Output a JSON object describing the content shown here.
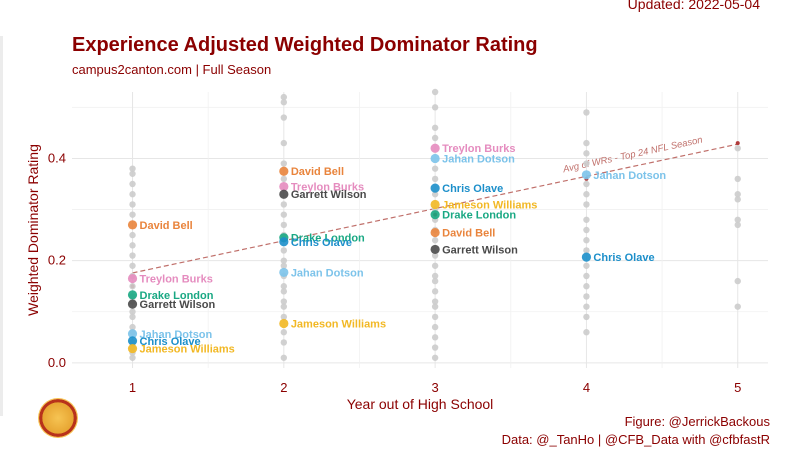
{
  "header": {
    "updated": "Updated: 2022-05-04",
    "title": "Experience Adjusted Weighted Dominator Rating",
    "subtitle": "campus2canton.com | Full Season"
  },
  "footer": {
    "figure_credit": "Figure: @JerrickBackous",
    "data_credit": "Data: @_TanHo | @CFB_Data with @cfbfastR"
  },
  "colors": {
    "accent": "#8b0000",
    "background_points": "#cccccc",
    "trend": "#c0706b",
    "players": {
      "David Bell": "#e9843c",
      "Treylon Burks": "#e58cbf",
      "Drake London": "#19a883",
      "Garrett Wilson": "#4a4a4a",
      "Jahan Dotson": "#7cc3ea",
      "Chris Olave": "#1c8fca",
      "Jameson Williams": "#f2b824"
    }
  },
  "chart_data": {
    "type": "scatter",
    "xlabel": "Year out of High School",
    "ylabel": "Weighted Dominator Rating",
    "xlim": [
      0.6,
      5.2
    ],
    "ylim": [
      -0.01,
      0.53
    ],
    "x_ticks": [
      1,
      2,
      3,
      4,
      5
    ],
    "y_ticks": [
      0.0,
      0.2,
      0.4
    ],
    "y_tick_labels": [
      "0.0",
      "0.2",
      "0.4"
    ],
    "grid": true,
    "background_points": [
      {
        "x": 1,
        "y": 0.38
      },
      {
        "x": 1,
        "y": 0.37
      },
      {
        "x": 1,
        "y": 0.35
      },
      {
        "x": 1,
        "y": 0.33
      },
      {
        "x": 1,
        "y": 0.31
      },
      {
        "x": 1,
        "y": 0.29
      },
      {
        "x": 1,
        "y": 0.25
      },
      {
        "x": 1,
        "y": 0.23
      },
      {
        "x": 1,
        "y": 0.21
      },
      {
        "x": 1,
        "y": 0.19
      },
      {
        "x": 1,
        "y": 0.17
      },
      {
        "x": 1,
        "y": 0.15
      },
      {
        "x": 1,
        "y": 0.13
      },
      {
        "x": 1,
        "y": 0.12
      },
      {
        "x": 1,
        "y": 0.1
      },
      {
        "x": 1,
        "y": 0.09
      },
      {
        "x": 1,
        "y": 0.07
      },
      {
        "x": 1,
        "y": 0.06
      },
      {
        "x": 1,
        "y": 0.04
      },
      {
        "x": 1,
        "y": 0.03
      },
      {
        "x": 1,
        "y": 0.02
      },
      {
        "x": 1,
        "y": 0.01
      },
      {
        "x": 2,
        "y": 0.52
      },
      {
        "x": 2,
        "y": 0.51
      },
      {
        "x": 2,
        "y": 0.48
      },
      {
        "x": 2,
        "y": 0.43
      },
      {
        "x": 2,
        "y": 0.39
      },
      {
        "x": 2,
        "y": 0.36
      },
      {
        "x": 2,
        "y": 0.31
      },
      {
        "x": 2,
        "y": 0.29
      },
      {
        "x": 2,
        "y": 0.27
      },
      {
        "x": 2,
        "y": 0.25
      },
      {
        "x": 2,
        "y": 0.22
      },
      {
        "x": 2,
        "y": 0.2
      },
      {
        "x": 2,
        "y": 0.19
      },
      {
        "x": 2,
        "y": 0.17
      },
      {
        "x": 2,
        "y": 0.15
      },
      {
        "x": 2,
        "y": 0.14
      },
      {
        "x": 2,
        "y": 0.12
      },
      {
        "x": 2,
        "y": 0.11
      },
      {
        "x": 2,
        "y": 0.09
      },
      {
        "x": 2,
        "y": 0.06
      },
      {
        "x": 2,
        "y": 0.04
      },
      {
        "x": 2,
        "y": 0.01
      },
      {
        "x": 3,
        "y": 0.53
      },
      {
        "x": 3,
        "y": 0.5
      },
      {
        "x": 3,
        "y": 0.46
      },
      {
        "x": 3,
        "y": 0.44
      },
      {
        "x": 3,
        "y": 0.38
      },
      {
        "x": 3,
        "y": 0.36
      },
      {
        "x": 3,
        "y": 0.33
      },
      {
        "x": 3,
        "y": 0.3
      },
      {
        "x": 3,
        "y": 0.28
      },
      {
        "x": 3,
        "y": 0.26
      },
      {
        "x": 3,
        "y": 0.24
      },
      {
        "x": 3,
        "y": 0.21
      },
      {
        "x": 3,
        "y": 0.19
      },
      {
        "x": 3,
        "y": 0.17
      },
      {
        "x": 3,
        "y": 0.16
      },
      {
        "x": 3,
        "y": 0.14
      },
      {
        "x": 3,
        "y": 0.12
      },
      {
        "x": 3,
        "y": 0.11
      },
      {
        "x": 3,
        "y": 0.09
      },
      {
        "x": 3,
        "y": 0.07
      },
      {
        "x": 3,
        "y": 0.05
      },
      {
        "x": 3,
        "y": 0.03
      },
      {
        "x": 3,
        "y": 0.01
      },
      {
        "x": 4,
        "y": 0.49
      },
      {
        "x": 4,
        "y": 0.43
      },
      {
        "x": 4,
        "y": 0.41
      },
      {
        "x": 4,
        "y": 0.39
      },
      {
        "x": 4,
        "y": 0.35
      },
      {
        "x": 4,
        "y": 0.33
      },
      {
        "x": 4,
        "y": 0.31
      },
      {
        "x": 4,
        "y": 0.28
      },
      {
        "x": 4,
        "y": 0.26
      },
      {
        "x": 4,
        "y": 0.24
      },
      {
        "x": 4,
        "y": 0.22
      },
      {
        "x": 4,
        "y": 0.19
      },
      {
        "x": 4,
        "y": 0.17
      },
      {
        "x": 4,
        "y": 0.15
      },
      {
        "x": 4,
        "y": 0.13
      },
      {
        "x": 4,
        "y": 0.11
      },
      {
        "x": 4,
        "y": 0.09
      },
      {
        "x": 4,
        "y": 0.06
      },
      {
        "x": 5,
        "y": 0.42
      },
      {
        "x": 5,
        "y": 0.36
      },
      {
        "x": 5,
        "y": 0.33
      },
      {
        "x": 5,
        "y": 0.32
      },
      {
        "x": 5,
        "y": 0.28
      },
      {
        "x": 5,
        "y": 0.27
      },
      {
        "x": 5,
        "y": 0.16
      },
      {
        "x": 5,
        "y": 0.11
      }
    ],
    "series": [
      {
        "name": "David Bell",
        "points": [
          {
            "x": 1,
            "y": 0.27
          },
          {
            "x": 2,
            "y": 0.375
          },
          {
            "x": 3,
            "y": 0.255
          }
        ]
      },
      {
        "name": "Treylon Burks",
        "points": [
          {
            "x": 1,
            "y": 0.165
          },
          {
            "x": 2,
            "y": 0.345
          },
          {
            "x": 3,
            "y": 0.42
          }
        ]
      },
      {
        "name": "Drake London",
        "points": [
          {
            "x": 1,
            "y": 0.133
          },
          {
            "x": 2,
            "y": 0.245
          },
          {
            "x": 3,
            "y": 0.29
          }
        ]
      },
      {
        "name": "Garrett Wilson",
        "points": [
          {
            "x": 1,
            "y": 0.115
          },
          {
            "x": 2,
            "y": 0.33
          },
          {
            "x": 3,
            "y": 0.222
          }
        ]
      },
      {
        "name": "Jahan Dotson",
        "points": [
          {
            "x": 1,
            "y": 0.057
          },
          {
            "x": 2,
            "y": 0.177
          },
          {
            "x": 3,
            "y": 0.4
          },
          {
            "x": 4,
            "y": 0.368
          }
        ]
      },
      {
        "name": "Chris Olave",
        "points": [
          {
            "x": 1,
            "y": 0.043
          },
          {
            "x": 2,
            "y": 0.237
          },
          {
            "x": 3,
            "y": 0.342
          },
          {
            "x": 4,
            "y": 0.207
          }
        ]
      },
      {
        "name": "Jameson Williams",
        "points": [
          {
            "x": 1,
            "y": 0.028
          },
          {
            "x": 2,
            "y": 0.077
          },
          {
            "x": 3,
            "y": 0.31
          }
        ]
      }
    ],
    "trend_line": {
      "label": "Avg of WRs - Top 24 NFL Season",
      "start": {
        "x": 1,
        "y": 0.176
      },
      "end": {
        "x": 5,
        "y": 0.428
      }
    },
    "trend_dots": [
      {
        "x": 1,
        "y": 0.15
      },
      {
        "x": 2,
        "y": 0.24
      },
      {
        "x": 3,
        "y": 0.29
      },
      {
        "x": 4,
        "y": 0.36
      },
      {
        "x": 5,
        "y": 0.43
      }
    ]
  }
}
